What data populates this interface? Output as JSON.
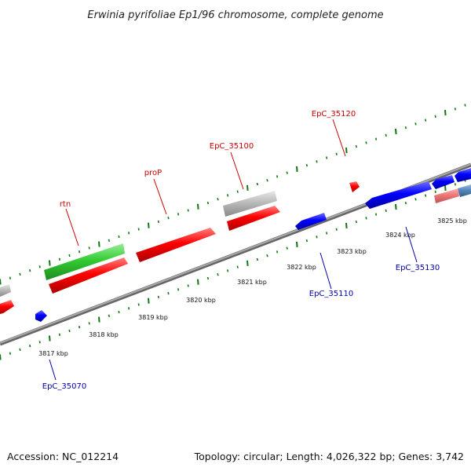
{
  "title": "Erwinia pyrifoliae Ep1/96 chromosome, complete genome",
  "footer": {
    "accession": "Accession: NC_012214",
    "summary": "Topology: circular; Length: 4,026,322 bp; Genes: 3,742"
  },
  "scale": {
    "unit": "kbp",
    "ticks": [
      {
        "kbp": 3817,
        "label": "3817 kbp"
      },
      {
        "kbp": 3818,
        "label": "3818 kbp"
      },
      {
        "kbp": 3819,
        "label": "3819 kbp"
      },
      {
        "kbp": 3820,
        "label": "3820 kbp"
      },
      {
        "kbp": 3821,
        "label": "3821 kbp"
      },
      {
        "kbp": 3822,
        "label": "3822 kbp"
      },
      {
        "kbp": 3823,
        "label": "3823 kbp"
      },
      {
        "kbp": 3824,
        "label": "3824 kbp"
      },
      {
        "kbp": 3825,
        "label": "3825 kbp"
      }
    ]
  },
  "gene_labels": {
    "forward": [
      {
        "name": "rtn"
      },
      {
        "name": "proP"
      },
      {
        "name": "EpC_35100"
      },
      {
        "name": "EpC_35120"
      }
    ],
    "reverse": [
      {
        "name": "EpC_35070"
      },
      {
        "name": "EpC_35110"
      },
      {
        "name": "EpC_35130"
      }
    ]
  },
  "colors": {
    "forward_gene": "#ff0000",
    "reverse_gene": "#0000ff",
    "rna_gene": "#33cc33",
    "other_gene": "#bbbbbb",
    "forward_label": "#cc0000",
    "reverse_label": "#0000aa",
    "tick": "#117711",
    "backbone": "#888888"
  }
}
